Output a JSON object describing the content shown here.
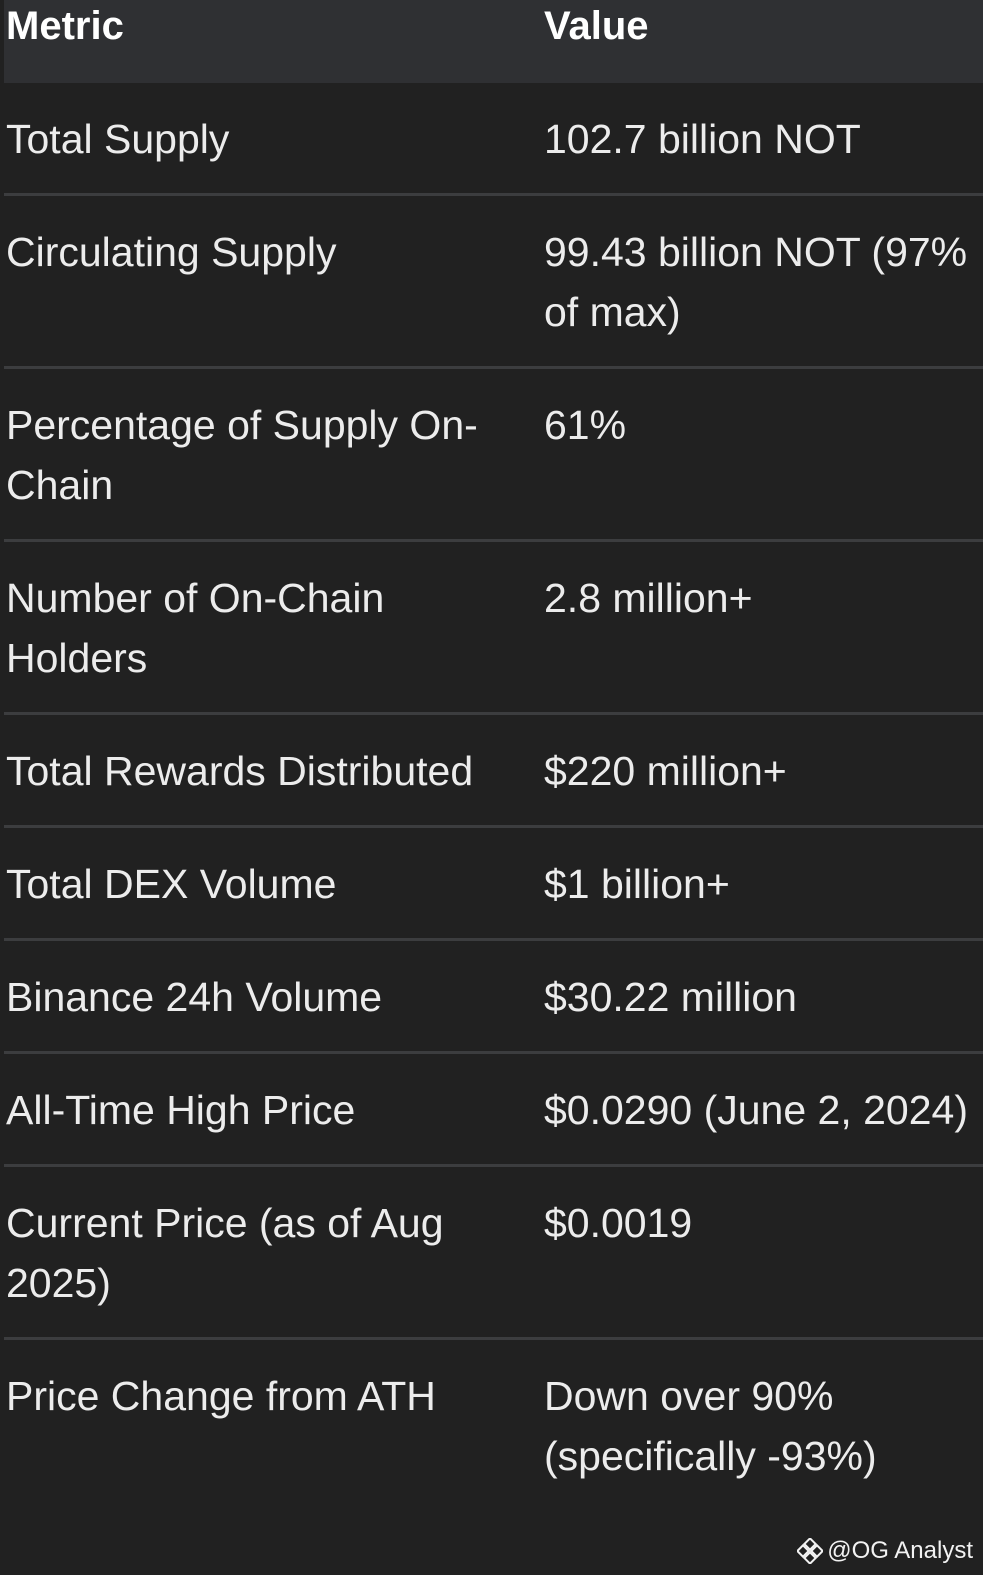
{
  "table": {
    "headers": [
      "Metric",
      "Value"
    ],
    "rows": [
      {
        "metric": "Total Supply",
        "value": "102.7 billion NOT"
      },
      {
        "metric": "Circulating Supply",
        "value": "99.43 billion NOT (97% of max)"
      },
      {
        "metric": "Percentage of Supply On-Chain",
        "value": "61%"
      },
      {
        "metric": "Number of On-Chain Holders",
        "value": "2.8 million+"
      },
      {
        "metric": "Total Rewards Distributed",
        "value": "$220 million+"
      },
      {
        "metric": "Total DEX Volume",
        "value": "$1 billion+"
      },
      {
        "metric": "Binance 24h Volume",
        "value": "$30.22 million"
      },
      {
        "metric": "All-Time High Price",
        "value": "$0.0290 (June 2, 2024)"
      },
      {
        "metric": "Current Price (as of Aug 2025)",
        "value": "$0.0019"
      },
      {
        "metric": "Price Change from ATH",
        "value": "Down over 90% (specifically -93%)"
      }
    ]
  },
  "watermark": {
    "text": "@OG Analyst",
    "icon": "binance-logo-icon"
  },
  "colors": {
    "background": "#212121",
    "header_background": "#2f3033",
    "divider": "#3c3d3f",
    "text": "#ececec"
  }
}
